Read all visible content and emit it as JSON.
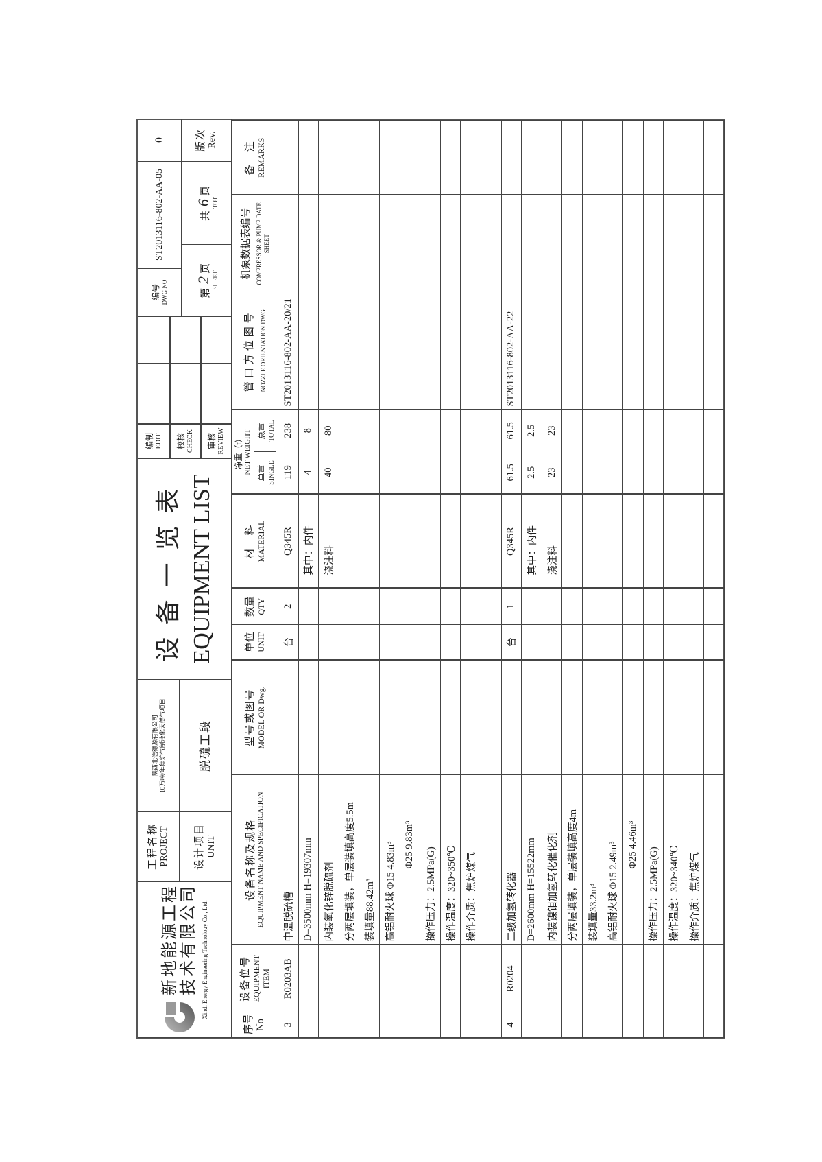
{
  "company": {
    "name_line1": "新地能源工程",
    "name_line2": "技术有限公司",
    "name_en": "Xindi Energy Engineering Technology Co., Ltd."
  },
  "project": {
    "project_label_cn": "工程名称",
    "project_label_en": "PROJECT",
    "project_value_line1": "陕西北信德源有限公司",
    "project_value_line2": "10万吨/年焦炉气制液化天然气项目",
    "unit_label_cn": "设计项目",
    "unit_label_en": "UNIT",
    "unit_value": "脱硫工段"
  },
  "title": {
    "cn": "设备一览表",
    "en": "EQUIPMENT LIST"
  },
  "signoff": [
    {
      "cn": "编制",
      "en": "EDIT"
    },
    {
      "cn": "校核",
      "en": "CHECK"
    },
    {
      "cn": "审核",
      "en": "REVIEW"
    }
  ],
  "drawing": {
    "dwg_label_cn": "编号",
    "dwg_label_en": "DWG NO",
    "dwg_no": "ST2013116-802-AA-05",
    "rev_value": "0",
    "sheet_prefix": "第",
    "sheet_no": "2",
    "sheet_suffix": "页",
    "sheet_en": "SHEET",
    "total_prefix": "共",
    "total_no": "6",
    "total_suffix": "页",
    "total_en": "TOT",
    "rev_label_cn": "版次",
    "rev_label_en": "Rev."
  },
  "columns": {
    "no": {
      "cn": "序号",
      "en": "No"
    },
    "item": {
      "cn": "设备位号",
      "en": "EQUIPMENT ITEM"
    },
    "spec": {
      "cn": "设备名称及规格",
      "en": "EQUIPMENT NAME AND SPECIFICATION"
    },
    "model": {
      "cn": "型号或图号",
      "en": "MODEL OR Dwg."
    },
    "unit": {
      "cn": "单位",
      "en": "UNIT"
    },
    "qty": {
      "cn": "数量",
      "en": "QTY"
    },
    "material": {
      "cn": "材　料",
      "en": "MATERIAL"
    },
    "weight": {
      "cn": "净重（t）",
      "en": "NET WEIGHT",
      "single_cn": "单重",
      "single_en": "SINGLE",
      "total_cn": "总重",
      "total_en": "TOTAL"
    },
    "nozzle": {
      "cn": "管口方位图号",
      "en": "NOZZLE ORIENTATION DWG"
    },
    "compressor": {
      "cn": "机泵数据表编号",
      "en": "COMPRESSOR & PUMP DATE SHEET"
    },
    "remarks": {
      "cn": "备　注",
      "en": "REMARKS"
    }
  },
  "rows": [
    [
      "3",
      "R0203AB",
      "中温脱硫槽",
      "",
      "台",
      "2",
      "Q345R",
      "119",
      "238",
      "ST2013116-802-AA-20/21",
      "",
      ""
    ],
    [
      "",
      "",
      "D=3500mm H=19307mm",
      "",
      "",
      "",
      "其中：内件",
      "4",
      "8",
      "",
      "",
      ""
    ],
    [
      "",
      "",
      "内装氧化锌脱硫剂",
      "",
      "",
      "",
      "浇注料",
      "40",
      "80",
      "",
      "",
      ""
    ],
    [
      "",
      "",
      "分两层填装，单层装填高度5.5m",
      "",
      "",
      "",
      "",
      "",
      "",
      "",
      "",
      ""
    ],
    [
      "",
      "",
      "装填量88.42m³",
      "",
      "",
      "",
      "",
      "",
      "",
      "",
      "",
      ""
    ],
    [
      "",
      "",
      "高铝耐火球 Φ15  4.83m³",
      "",
      "",
      "",
      "",
      "",
      "",
      "",
      "",
      ""
    ],
    [
      "",
      "",
      "Φ25  9.83m³",
      "",
      "",
      "",
      "",
      "",
      "",
      "",
      "",
      ""
    ],
    [
      "",
      "",
      "操作压力：2.5MPa(G)",
      "",
      "",
      "",
      "",
      "",
      "",
      "",
      "",
      ""
    ],
    [
      "",
      "",
      "操作温度：320~350℃",
      "",
      "",
      "",
      "",
      "",
      "",
      "",
      "",
      ""
    ],
    [
      "",
      "",
      "操作介质：焦炉煤气",
      "",
      "",
      "",
      "",
      "",
      "",
      "",
      "",
      ""
    ],
    [
      "",
      "",
      "",
      "",
      "",
      "",
      "",
      "",
      "",
      "",
      "",
      ""
    ],
    [
      "4",
      "R0204",
      "二级加氢转化器",
      "",
      "台",
      "1",
      "Q345R",
      "61.5",
      "61.5",
      "ST2013116-802-AA-22",
      "",
      ""
    ],
    [
      "",
      "",
      "D=2600mm H=15522mm",
      "",
      "",
      "",
      "其中：内件",
      "2.5",
      "2.5",
      "",
      "",
      ""
    ],
    [
      "",
      "",
      "内装镍钼加氢转化催化剂",
      "",
      "",
      "",
      "浇注料",
      "23",
      "23",
      "",
      "",
      ""
    ],
    [
      "",
      "",
      "分两层填装，单层装填高度4m",
      "",
      "",
      "",
      "",
      "",
      "",
      "",
      "",
      ""
    ],
    [
      "",
      "",
      "装填量33.2m³",
      "",
      "",
      "",
      "",
      "",
      "",
      "",
      "",
      ""
    ],
    [
      "",
      "",
      "高铝耐火球 Φ15  2.49m³",
      "",
      "",
      "",
      "",
      "",
      "",
      "",
      "",
      ""
    ],
    [
      "",
      "",
      "Φ25  4.46m³",
      "",
      "",
      "",
      "",
      "",
      "",
      "",
      "",
      ""
    ],
    [
      "",
      "",
      "操作压力：2.5MPa(G)",
      "",
      "",
      "",
      "",
      "",
      "",
      "",
      "",
      ""
    ],
    [
      "",
      "",
      "操作温度：320~340℃",
      "",
      "",
      "",
      "",
      "",
      "",
      "",
      "",
      ""
    ],
    [
      "",
      "",
      "操作介质：焦炉煤气",
      "",
      "",
      "",
      "",
      "",
      "",
      "",
      "",
      ""
    ],
    [
      "",
      "",
      "",
      "",
      "",
      "",
      "",
      "",
      "",
      "",
      "",
      ""
    ]
  ],
  "logo_icon": "xindi-swirl-logo"
}
